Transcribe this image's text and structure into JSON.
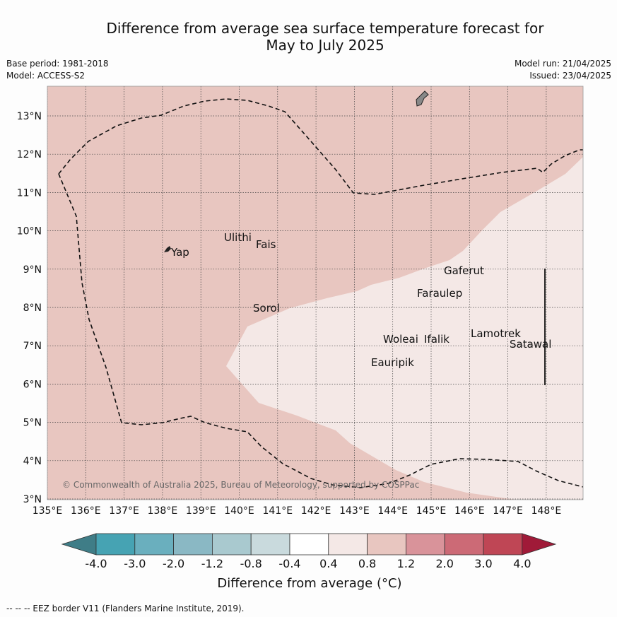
{
  "title_line1": "Difference from average sea surface temperature forecast for",
  "title_line2": "May to July 2025",
  "base_period": "Base period: 1981-2018",
  "model": "Model: ACCESS-S2",
  "model_run": "Model run: 21/04/2025",
  "issued": "Issued: 23/04/2025",
  "copyright": "© Commonwealth of Australia 2025, Bureau of Meteorology, supported by COSPPac",
  "lon_ticks": [
    "135°E",
    "136°E",
    "137°E",
    "138°E",
    "139°E",
    "140°E",
    "141°E",
    "142°E",
    "143°E",
    "144°E",
    "145°E",
    "146°E",
    "147°E",
    "148°E"
  ],
  "lat_ticks": [
    "3°N",
    "4°N",
    "5°N",
    "6°N",
    "7°N",
    "8°N",
    "9°N",
    "10°N",
    "11°N",
    "12°N",
    "13°N"
  ],
  "places": {
    "yap": "Yap",
    "ulithi": "Ulithi",
    "fais": "Fais",
    "gaferut": "Gaferut",
    "faraulep": "Faraulep",
    "sorol": "Sorol",
    "woleai": "Woleai",
    "ifalik": "Ifalik",
    "lamotrek": "Lamotrek",
    "satawal": "Satawal",
    "eauripik": "Eauripik"
  },
  "colorbar": {
    "title": "Difference from average (°C)",
    "tick_labels": [
      "-4.0",
      "-3.0",
      "-2.0",
      "-1.2",
      "-0.8",
      "-0.4",
      "0.4",
      "0.8",
      "1.2",
      "2.0",
      "3.0",
      "4.0"
    ],
    "colors": [
      "#3f7d87",
      "#46a3b3",
      "#6aafbe",
      "#8ab8c4",
      "#a9c9cf",
      "#c9dadd",
      "#ffffff",
      "#f4e8e6",
      "#e8c6c0",
      "#d9939a",
      "#cc6a76",
      "#bf4655",
      "#a01a38"
    ]
  },
  "legend_note": "--  --  -- EEZ border V11 (Flanders Marine Institute, 2019).",
  "map_fills": {
    "anomaly_04_08": "#f4e8e6",
    "anomaly_08_12": "#e8c6c0"
  }
}
